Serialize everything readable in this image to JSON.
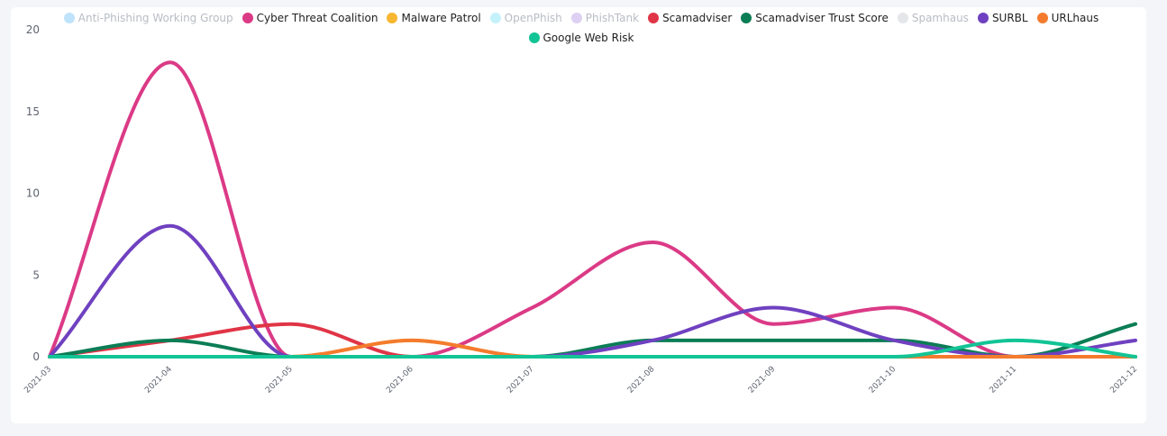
{
  "chart_data": {
    "type": "line",
    "title": "",
    "xlabel": "",
    "ylabel": "",
    "ylim": [
      0,
      20
    ],
    "yticks": [
      0,
      5,
      10,
      15,
      20
    ],
    "x": [
      "2021-03",
      "2021-04",
      "2021-05",
      "2021-06",
      "2021-07",
      "2021-08",
      "2021-09",
      "2021-10",
      "2021-11",
      "2021-12"
    ],
    "series": [
      {
        "name": "Anti-Phishing Working Group",
        "color": "#bfe3fb",
        "visible": false,
        "values": [
          0,
          0,
          0,
          0,
          0,
          0,
          0,
          0,
          0,
          0
        ]
      },
      {
        "name": "Cyber Threat Coalition",
        "color": "#db3a86",
        "visible": true,
        "values": [
          0,
          18,
          0,
          0,
          3,
          7,
          2,
          3,
          0,
          0
        ]
      },
      {
        "name": "Malware Patrol",
        "color": "#f7b731",
        "visible": true,
        "values": [
          0,
          0,
          0,
          1,
          0,
          0,
          0,
          0,
          0,
          0
        ]
      },
      {
        "name": "OpenPhish",
        "color": "#c5f1fb",
        "visible": false,
        "values": [
          0,
          0,
          0,
          0,
          0,
          0,
          0,
          0,
          0,
          0
        ]
      },
      {
        "name": "PhishTank",
        "color": "#ddd0f2",
        "visible": false,
        "values": [
          0,
          0,
          0,
          0,
          0,
          0,
          0,
          0,
          0,
          0
        ]
      },
      {
        "name": "Scamadviser",
        "color": "#e03546",
        "visible": true,
        "values": [
          0,
          1,
          2,
          0,
          0,
          0,
          0,
          0,
          0,
          0
        ]
      },
      {
        "name": "Scamadviser Trust Score",
        "color": "#0b7d55",
        "visible": true,
        "values": [
          0,
          1,
          0,
          0,
          0,
          1,
          1,
          1,
          0,
          2
        ]
      },
      {
        "name": "Spamhaus",
        "color": "#e4e6ea",
        "visible": false,
        "values": [
          0,
          0,
          0,
          0,
          0,
          0,
          0,
          0,
          0,
          0
        ]
      },
      {
        "name": "SURBL",
        "color": "#6f41c0",
        "visible": true,
        "values": [
          0,
          8,
          0,
          0,
          0,
          1,
          3,
          1,
          0,
          1
        ]
      },
      {
        "name": "URLhaus",
        "color": "#f47b2e",
        "visible": true,
        "values": [
          0,
          0,
          0,
          1,
          0,
          0,
          0,
          0,
          0,
          0
        ]
      },
      {
        "name": "Google Web Risk",
        "color": "#12c495",
        "visible": true,
        "values": [
          0,
          0,
          0,
          0,
          0,
          0,
          0,
          0,
          1,
          0
        ]
      }
    ]
  }
}
